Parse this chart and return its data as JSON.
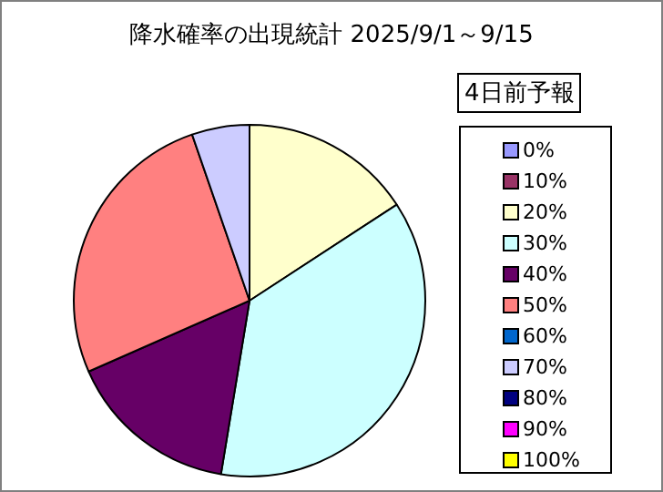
{
  "chart_data": {
    "type": "pie",
    "title": "降水確率の出現統計 2025/9/1～9/15",
    "legend_title": "4日前予報",
    "legend": "right",
    "categories": [
      "0%",
      "10%",
      "20%",
      "30%",
      "40%",
      "50%",
      "60%",
      "70%",
      "80%",
      "90%",
      "100%"
    ],
    "values": [
      0,
      0,
      15.8,
      36.8,
      15.8,
      26.3,
      0,
      5.3,
      0,
      0,
      0
    ],
    "colors": [
      "#9999ff",
      "#993366",
      "#ffffcc",
      "#ccffff",
      "#660066",
      "#ff8080",
      "#0066cc",
      "#ccccff",
      "#000080",
      "#ff00ff",
      "#ffff00"
    ]
  }
}
